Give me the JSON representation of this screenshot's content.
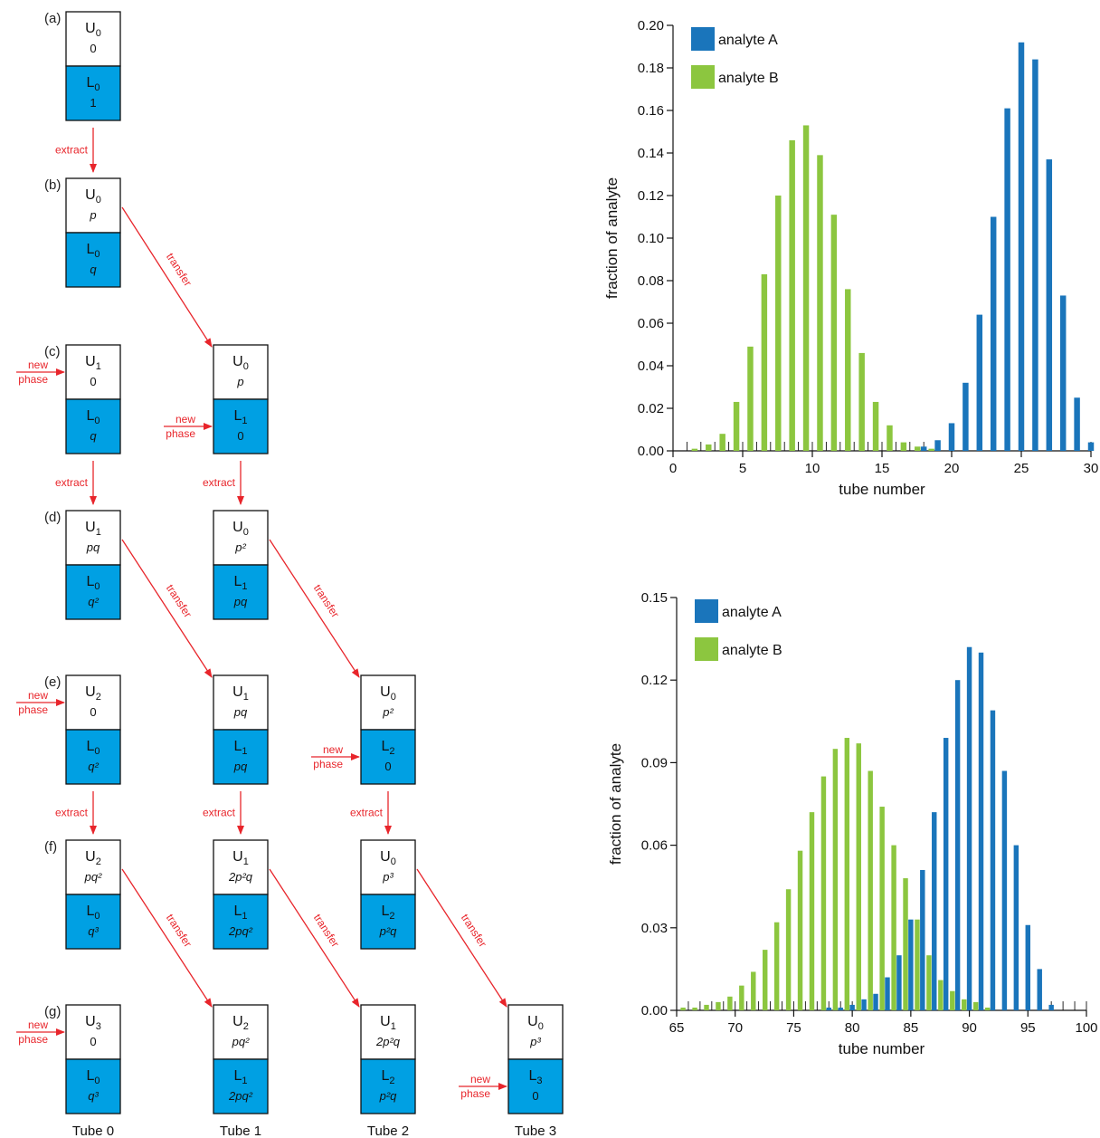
{
  "diagram": {
    "stages": [
      {
        "label": "(a)",
        "cells": [
          {
            "tube": 0,
            "upper_name": "U",
            "upper_sub": "0",
            "upper_val": "0",
            "lower_name": "L",
            "lower_sub": "0",
            "lower_val": "1",
            "feed": ""
          }
        ]
      },
      {
        "label": "(b)",
        "cells": [
          {
            "tube": 0,
            "upper_name": "U",
            "upper_sub": "0",
            "upper_val": "p",
            "lower_name": "L",
            "lower_sub": "0",
            "lower_val": "q",
            "feed": ""
          }
        ]
      },
      {
        "label": "(c)",
        "cells": [
          {
            "tube": 0,
            "upper_name": "U",
            "upper_sub": "1",
            "upper_val": "0",
            "lower_name": "L",
            "lower_sub": "0",
            "lower_val": "q",
            "feed": "upper"
          },
          {
            "tube": 1,
            "upper_name": "U",
            "upper_sub": "0",
            "upper_val": "p",
            "lower_name": "L",
            "lower_sub": "1",
            "lower_val": "0",
            "feed": "lower"
          }
        ]
      },
      {
        "label": "(d)",
        "cells": [
          {
            "tube": 0,
            "upper_name": "U",
            "upper_sub": "1",
            "upper_val": "pq",
            "lower_name": "L",
            "lower_sub": "0",
            "lower_val": "q²",
            "feed": ""
          },
          {
            "tube": 1,
            "upper_name": "U",
            "upper_sub": "0",
            "upper_val": "p²",
            "lower_name": "L",
            "lower_sub": "1",
            "lower_val": "pq",
            "feed": ""
          }
        ]
      },
      {
        "label": "(e)",
        "cells": [
          {
            "tube": 0,
            "upper_name": "U",
            "upper_sub": "2",
            "upper_val": "0",
            "lower_name": "L",
            "lower_sub": "0",
            "lower_val": "q²",
            "feed": "upper"
          },
          {
            "tube": 1,
            "upper_name": "U",
            "upper_sub": "1",
            "upper_val": "pq",
            "lower_name": "L",
            "lower_sub": "1",
            "lower_val": "pq",
            "feed": ""
          },
          {
            "tube": 2,
            "upper_name": "U",
            "upper_sub": "0",
            "upper_val": "p²",
            "lower_name": "L",
            "lower_sub": "2",
            "lower_val": "0",
            "feed": "lower"
          }
        ]
      },
      {
        "label": "(f)",
        "cells": [
          {
            "tube": 0,
            "upper_name": "U",
            "upper_sub": "2",
            "upper_val": "pq²",
            "lower_name": "L",
            "lower_sub": "0",
            "lower_val": "q³",
            "feed": ""
          },
          {
            "tube": 1,
            "upper_name": "U",
            "upper_sub": "1",
            "upper_val": "2p²q",
            "lower_name": "L",
            "lower_sub": "1",
            "lower_val": "2pq²",
            "feed": ""
          },
          {
            "tube": 2,
            "upper_name": "U",
            "upper_sub": "0",
            "upper_val": "p³",
            "lower_name": "L",
            "lower_sub": "2",
            "lower_val": "p²q",
            "feed": ""
          }
        ]
      },
      {
        "label": "(g)",
        "cells": [
          {
            "tube": 0,
            "upper_name": "U",
            "upper_sub": "3",
            "upper_val": "0",
            "lower_name": "L",
            "lower_sub": "0",
            "lower_val": "q³",
            "feed": "upper"
          },
          {
            "tube": 1,
            "upper_name": "U",
            "upper_sub": "2",
            "upper_val": "pq²",
            "lower_name": "L",
            "lower_sub": "1",
            "lower_val": "2pq²",
            "feed": ""
          },
          {
            "tube": 2,
            "upper_name": "U",
            "upper_sub": "1",
            "upper_val": "2p²q",
            "lower_name": "L",
            "lower_sub": "2",
            "lower_val": "p²q",
            "feed": ""
          },
          {
            "tube": 3,
            "upper_name": "U",
            "upper_sub": "0",
            "upper_val": "p³",
            "lower_name": "L",
            "lower_sub": "3",
            "lower_val": "0",
            "feed": "lower"
          }
        ]
      }
    ],
    "extract_label": "extract",
    "transfer_label": "transfer",
    "new_phase_label_1": "new",
    "new_phase_label_2": "phase",
    "tube_labels": [
      "Tube 0",
      "Tube 1",
      "Tube 2",
      "Tube 3"
    ],
    "colors": {
      "lower_phase": "#00a0e3",
      "arrow": "#e8252b"
    }
  },
  "chart_data": [
    {
      "type": "bar",
      "xlabel": "tube number",
      "ylabel": "fraction of analyte",
      "xlim": [
        0,
        30
      ],
      "ylim": [
        0,
        0.2
      ],
      "xticks": [
        0,
        5,
        10,
        15,
        20,
        25,
        30
      ],
      "yticks": [
        "0.00",
        "0.02",
        "0.04",
        "0.06",
        "0.08",
        "0.10",
        "0.12",
        "0.14",
        "0.16",
        "0.18",
        "0.20"
      ],
      "legend_position": "top-left",
      "series": [
        {
          "name": "analyte A",
          "color": "#1a75bb",
          "x": [
            18,
            19,
            20,
            21,
            22,
            23,
            24,
            25,
            26,
            27,
            28,
            29,
            30
          ],
          "values": [
            0.002,
            0.005,
            0.013,
            0.032,
            0.064,
            0.11,
            0.161,
            0.192,
            0.184,
            0.137,
            0.073,
            0.025,
            0.004
          ]
        },
        {
          "name": "analyte B",
          "color": "#8cc63f",
          "x": [
            2,
            3,
            4,
            5,
            6,
            7,
            8,
            9,
            10,
            11,
            12,
            13,
            14,
            15,
            16,
            17,
            18,
            19
          ],
          "values": [
            0.001,
            0.003,
            0.008,
            0.023,
            0.049,
            0.083,
            0.12,
            0.146,
            0.153,
            0.139,
            0.111,
            0.076,
            0.046,
            0.023,
            0.012,
            0.004,
            0.002,
            0.001
          ]
        }
      ]
    },
    {
      "type": "bar",
      "xlabel": "tube number",
      "ylabel": "fraction of analyte",
      "xlim": [
        65,
        100
      ],
      "ylim": [
        0,
        0.15
      ],
      "xticks": [
        65,
        70,
        75,
        80,
        85,
        90,
        95,
        100
      ],
      "yticks": [
        "0.00",
        "0.03",
        "0.06",
        "0.09",
        "0.12",
        "0.15"
      ],
      "legend_position": "top-left",
      "series": [
        {
          "name": "analyte A",
          "color": "#1a75bb",
          "x": [
            78,
            79,
            80,
            81,
            82,
            83,
            84,
            85,
            86,
            87,
            88,
            89,
            90,
            91,
            92,
            93,
            94,
            95,
            96,
            97
          ],
          "values": [
            0.001,
            0.001,
            0.002,
            0.004,
            0.006,
            0.012,
            0.02,
            0.033,
            0.051,
            0.072,
            0.099,
            0.12,
            0.132,
            0.13,
            0.109,
            0.087,
            0.06,
            0.031,
            0.015,
            0.002
          ]
        },
        {
          "name": "analyte B",
          "color": "#8cc63f",
          "x": [
            66,
            67,
            68,
            69,
            70,
            71,
            72,
            73,
            74,
            75,
            76,
            77,
            78,
            79,
            80,
            81,
            82,
            83,
            84,
            85,
            86,
            87,
            88,
            89,
            90,
            91,
            92
          ],
          "values": [
            0.001,
            0.001,
            0.002,
            0.003,
            0.005,
            0.009,
            0.014,
            0.022,
            0.032,
            0.044,
            0.058,
            0.072,
            0.085,
            0.095,
            0.099,
            0.097,
            0.087,
            0.074,
            0.06,
            0.048,
            0.033,
            0.02,
            0.011,
            0.007,
            0.004,
            0.003,
            0.001
          ]
        }
      ]
    }
  ]
}
